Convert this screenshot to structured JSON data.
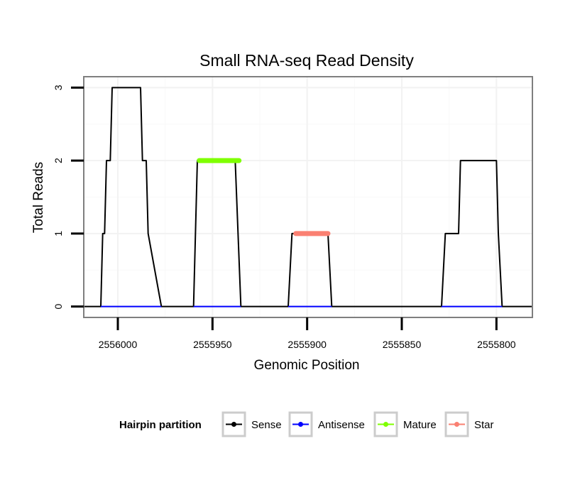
{
  "chart_data": {
    "type": "line",
    "title": "Small RNA-seq Read Density",
    "xlabel": "Genomic Position",
    "ylabel": "Total Reads",
    "xlim": [
      2556018,
      2555781
    ],
    "ylim": [
      -0.15,
      3.15
    ],
    "x_reversed": true,
    "x_ticks": [
      2556000,
      2555950,
      2555900,
      2555850,
      2555800
    ],
    "x_tick_labels": [
      "2556000",
      "2555950",
      "2555900",
      "2555850",
      "2555800"
    ],
    "y_ticks": [
      0,
      1,
      2,
      3
    ],
    "y_tick_labels": [
      "0",
      "1",
      "2",
      "3"
    ],
    "grid": true,
    "legend": {
      "title": "Hairpin partition",
      "position": "bottom",
      "entries": [
        {
          "name": "Sense",
          "color": "#000000"
        },
        {
          "name": "Antisense",
          "color": "#0000ff"
        },
        {
          "name": "Mature",
          "color": "#7fff00"
        },
        {
          "name": "Star",
          "color": "#fa8072"
        }
      ]
    },
    "series": [
      {
        "name": "Sense",
        "color": "#000000",
        "x": [
          2556018,
          2556009,
          2556008,
          2556007,
          2556006,
          2556004,
          2556003,
          2556001,
          2555996,
          2555995,
          2555988,
          2555987,
          2555985,
          2555984,
          2555977,
          2555960,
          2555958,
          2555938,
          2555935,
          2555910,
          2555908,
          2555889,
          2555887,
          2555829,
          2555827,
          2555826,
          2555820,
          2555819,
          2555813,
          2555800,
          2555799,
          2555797,
          2555781
        ],
        "y": [
          0,
          0,
          1,
          1,
          2,
          2,
          3,
          3,
          3,
          3,
          3,
          2,
          2,
          1,
          0,
          0,
          2,
          2,
          0,
          0,
          1,
          1,
          0,
          0,
          1,
          1,
          1,
          2,
          2,
          2,
          1,
          0,
          0
        ]
      },
      {
        "name": "Antisense",
        "color": "#0000ff",
        "x": [
          2556009,
          2555977,
          2555960,
          2555935,
          2555910,
          2555887,
          2555829,
          2555797
        ],
        "y": [
          0,
          0,
          0,
          0,
          0,
          0,
          0,
          0
        ],
        "segments": [
          [
            0,
            1
          ],
          [
            2,
            3
          ],
          [
            4,
            5
          ],
          [
            6,
            7
          ]
        ]
      },
      {
        "name": "Mature",
        "color": "#7fff00",
        "x": [
          2555957,
          2555936
        ],
        "y": [
          2,
          2
        ]
      },
      {
        "name": "Star",
        "color": "#fa8072",
        "x": [
          2555906,
          2555889
        ],
        "y": [
          1,
          1
        ]
      }
    ]
  }
}
